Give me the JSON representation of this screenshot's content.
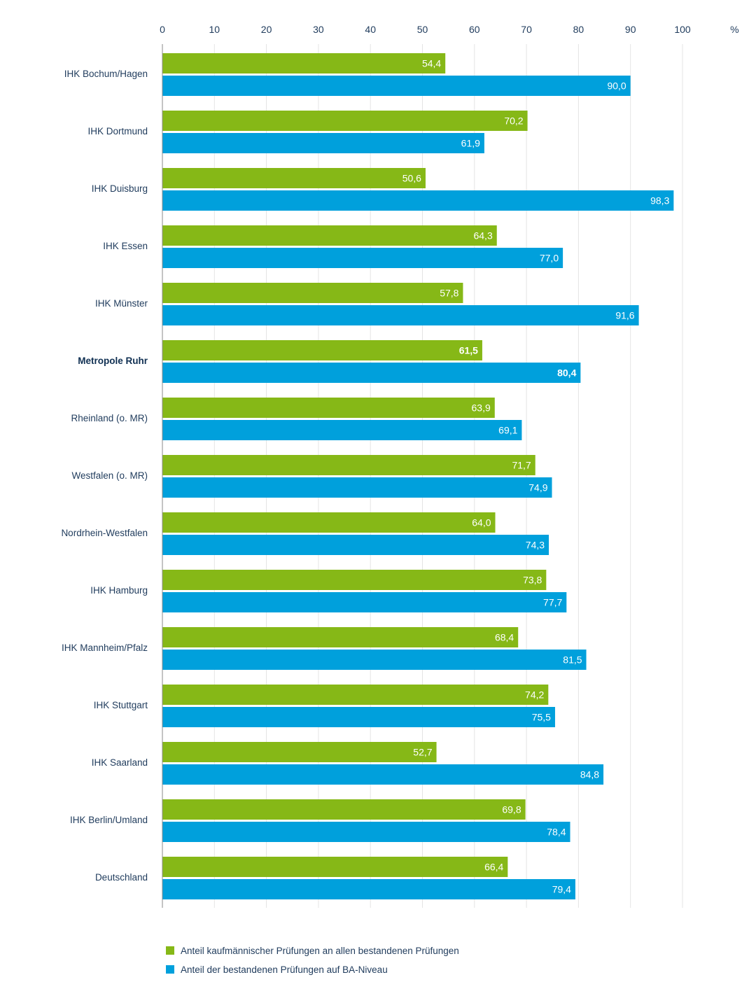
{
  "chart_data": {
    "type": "bar",
    "orientation": "horizontal",
    "title": "",
    "xlabel": "",
    "ylabel": "",
    "xlim": [
      0,
      110
    ],
    "x_ticks": [
      "0",
      "10",
      "20",
      "30",
      "40",
      "50",
      "60",
      "70",
      "80",
      "90",
      "100"
    ],
    "unit_label": "%",
    "grid": true,
    "highlight_category": "Metropole Ruhr",
    "categories": [
      "IHK Bochum/Hagen",
      "IHK Dortmund",
      "IHK Duisburg",
      "IHK Essen",
      "IHK Münster",
      "Metropole Ruhr",
      "Rheinland (o. MR)",
      "Westfalen (o. MR)",
      "Nordrhein-Westfalen",
      "IHK Hamburg",
      "IHK Mannheim/Pfalz",
      "IHK Stuttgart",
      "IHK Saarland",
      "IHK Berlin/Umland",
      "Deutschland"
    ],
    "series": [
      {
        "name": "Anteil kaufmännischer Prüfungen an allen bestandenen Prüfungen",
        "color": "#86b817",
        "values": [
          54.4,
          70.2,
          50.6,
          64.3,
          57.8,
          61.5,
          63.9,
          71.7,
          64.0,
          73.8,
          68.4,
          74.2,
          52.7,
          69.8,
          66.4
        ],
        "labels": [
          "54,4",
          "70,2",
          "50,6",
          "64,3",
          "57,8",
          "61,5",
          "63,9",
          "71,7",
          "64,0",
          "73,8",
          "68,4",
          "74,2",
          "52,7",
          "69,8",
          "66,4"
        ]
      },
      {
        "name": "Anteil der bestandenen Prüfungen auf BA-Niveau",
        "color": "#00a0dc",
        "values": [
          90.0,
          61.9,
          98.3,
          77.0,
          91.6,
          80.4,
          69.1,
          74.9,
          74.3,
          77.7,
          81.5,
          75.5,
          84.8,
          78.4,
          79.4
        ],
        "labels": [
          "90,0",
          "61,9",
          "98,3",
          "77,0",
          "91,6",
          "80,4",
          "69,1",
          "74,9",
          "74,3",
          "77,7",
          "81,5",
          "75,5",
          "84,8",
          "78,4",
          "79,4"
        ]
      }
    ],
    "legend_position": "bottom-left"
  }
}
